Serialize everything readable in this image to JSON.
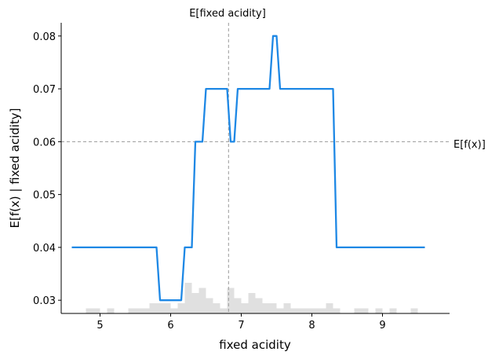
{
  "chart_data": {
    "type": "line",
    "xlabel": "fixed acidity",
    "ylabel": "E[f(x) | fixed acidity]",
    "xlim": [
      4.45,
      9.95
    ],
    "ylim": [
      0.0275,
      0.0825
    ],
    "xticks": [
      5,
      6,
      7,
      8,
      9
    ],
    "xtick_labels": [
      "5",
      "6",
      "7",
      "8",
      "9"
    ],
    "yticks": [
      0.03,
      0.04,
      0.05,
      0.06,
      0.07,
      0.08
    ],
    "ytick_labels": [
      "0.03",
      "0.04",
      "0.05",
      "0.06",
      "0.07",
      "0.08"
    ],
    "grid": false,
    "series": [
      {
        "color": "#1e88e5",
        "x": [
          4.6,
          5.8,
          5.85,
          6.15,
          6.2,
          6.3,
          6.35,
          6.45,
          6.5,
          6.8,
          6.85,
          6.9,
          6.95,
          7.4,
          7.45,
          7.5,
          7.55,
          8.3,
          8.35,
          9.6
        ],
        "y": [
          0.04,
          0.04,
          0.03,
          0.03,
          0.04,
          0.04,
          0.06,
          0.06,
          0.07,
          0.07,
          0.06,
          0.06,
          0.07,
          0.07,
          0.08,
          0.08,
          0.07,
          0.07,
          0.04,
          0.04
        ]
      }
    ],
    "expected_value_line": {
      "y": 0.06,
      "label": "E[f(x)]",
      "color": "#999999"
    },
    "expected_feature_line": {
      "x": 6.82,
      "label": "E[fixed acidity]",
      "color": "#999999"
    },
    "histogram": {
      "color": "#e0e0e0",
      "bin_width": 0.1,
      "bin_starts": [
        4.8,
        4.9,
        5.0,
        5.1,
        5.2,
        5.3,
        5.4,
        5.5,
        5.6,
        5.7,
        5.8,
        5.9,
        6.0,
        6.1,
        6.2,
        6.3,
        6.4,
        6.5,
        6.6,
        6.7,
        6.8,
        6.9,
        7.0,
        7.1,
        7.2,
        7.3,
        7.4,
        7.5,
        7.6,
        7.7,
        7.8,
        7.9,
        8.0,
        8.1,
        8.2,
        8.3,
        8.4,
        8.5,
        8.6,
        8.7,
        8.8,
        8.9,
        9.0,
        9.1,
        9.2,
        9.3,
        9.4,
        9.5
      ],
      "counts": [
        1,
        1,
        0,
        1,
        0,
        0,
        1,
        1,
        1,
        2,
        2,
        2,
        1,
        2,
        6,
        4,
        5,
        3,
        2,
        1,
        5,
        3,
        2,
        4,
        3,
        2,
        2,
        1,
        2,
        1,
        1,
        1,
        1,
        1,
        2,
        1,
        0,
        0,
        1,
        1,
        0,
        1,
        0,
        1,
        0,
        0,
        1,
        0
      ]
    }
  }
}
